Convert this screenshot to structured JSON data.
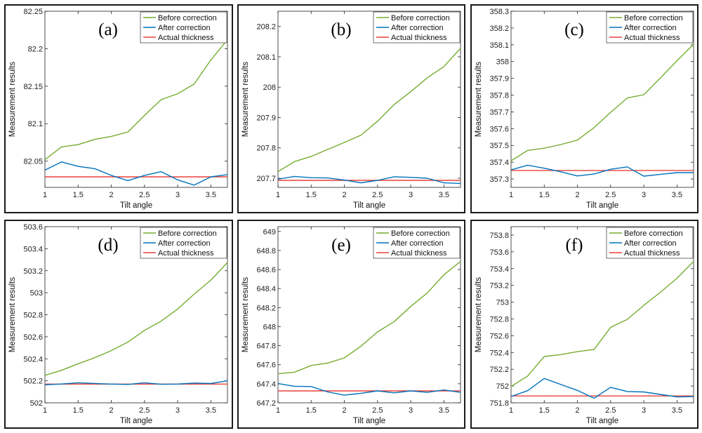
{
  "chart_data": [
    {
      "type": "line",
      "title": "(a)",
      "xlabel": "Tilt angle",
      "ylabel": "Measurement results",
      "x": [
        1,
        1.25,
        1.5,
        1.75,
        2,
        2.25,
        2.5,
        2.75,
        3,
        3.25,
        3.5,
        3.75
      ],
      "xlim": [
        1,
        3.75
      ],
      "ylim": [
        82.015,
        82.25
      ],
      "xticks": [
        "1",
        "1.5",
        "2",
        "2.5",
        "3",
        "3.5"
      ],
      "yticks": [
        "82.05",
        "82.1",
        "82.15",
        "82.2",
        "82.25"
      ],
      "series": [
        {
          "name": "Before correction",
          "color": "#77ac30",
          "values": [
            82.052,
            82.069,
            82.072,
            82.079,
            82.083,
            82.089,
            82.111,
            82.132,
            82.14,
            82.153,
            82.185,
            82.212
          ]
        },
        {
          "name": "After correction",
          "color": "#0072bd",
          "values": [
            82.038,
            82.049,
            82.043,
            82.04,
            82.031,
            82.024,
            82.031,
            82.036,
            82.025,
            82.018,
            82.029,
            82.032
          ]
        },
        {
          "name": "Actual thickness",
          "color": "#e8413c",
          "values": [
            82.029,
            82.029,
            82.029,
            82.029,
            82.029,
            82.029,
            82.029,
            82.029,
            82.029,
            82.029,
            82.029,
            82.029
          ]
        }
      ],
      "legend": "top-right"
    },
    {
      "type": "line",
      "title": "(b)",
      "xlabel": "Tilt angle",
      "ylabel": "Measurement results",
      "x": [
        1,
        1.25,
        1.5,
        1.75,
        2,
        2.25,
        2.5,
        2.75,
        3,
        3.25,
        3.5,
        3.75
      ],
      "xlim": [
        1,
        3.75
      ],
      "ylim": [
        207.67,
        208.25
      ],
      "xticks": [
        "1",
        "1.5",
        "2",
        "2.5",
        "3",
        "3.5"
      ],
      "yticks": [
        "207.7",
        "207.8",
        "207.9",
        "208",
        "208.1",
        "208.2"
      ],
      "series": [
        {
          "name": "Before correction",
          "color": "#77ac30",
          "values": [
            207.722,
            207.755,
            207.772,
            207.795,
            207.818,
            207.842,
            207.888,
            207.943,
            207.985,
            208.031,
            208.068,
            208.128
          ]
        },
        {
          "name": "After correction",
          "color": "#0072bd",
          "values": [
            207.697,
            207.706,
            207.702,
            207.701,
            207.694,
            207.685,
            207.693,
            207.705,
            207.703,
            207.7,
            207.685,
            207.683
          ]
        },
        {
          "name": "Actual thickness",
          "color": "#e8413c",
          "values": [
            207.693,
            207.693,
            207.693,
            207.693,
            207.693,
            207.693,
            207.693,
            207.693,
            207.693,
            207.693,
            207.693,
            207.693
          ]
        }
      ],
      "legend": "top-right"
    },
    {
      "type": "line",
      "title": "(c)",
      "xlabel": "Tilt angle",
      "ylabel": "Measurement results",
      "x": [
        1,
        1.25,
        1.5,
        1.75,
        2,
        2.25,
        2.5,
        2.75,
        3,
        3.25,
        3.5,
        3.75
      ],
      "xlim": [
        1,
        3.75
      ],
      "ylim": [
        357.25,
        358.3
      ],
      "xticks": [
        "1",
        "1.5",
        "2",
        "2.5",
        "3",
        "3.5"
      ],
      "yticks": [
        "357.3",
        "357.4",
        "357.5",
        "357.6",
        "357.7",
        "357.8",
        "357.9",
        "358",
        "358.1",
        "358.2",
        "358.3"
      ],
      "series": [
        {
          "name": "Before correction",
          "color": "#77ac30",
          "values": [
            357.408,
            357.47,
            357.484,
            357.505,
            357.532,
            357.606,
            357.697,
            357.783,
            357.802,
            357.902,
            358.005,
            358.103
          ]
        },
        {
          "name": "After correction",
          "color": "#0072bd",
          "values": [
            357.354,
            357.382,
            357.364,
            357.343,
            357.318,
            357.33,
            357.358,
            357.372,
            357.317,
            357.328,
            357.338,
            357.338
          ]
        },
        {
          "name": "Actual thickness",
          "color": "#e8413c",
          "values": [
            357.351,
            357.351,
            357.351,
            357.351,
            357.351,
            357.351,
            357.351,
            357.351,
            357.351,
            357.351,
            357.351,
            357.351
          ]
        }
      ],
      "legend": "top-right"
    },
    {
      "type": "line",
      "title": "(d)",
      "xlabel": "Tilt angle",
      "ylabel": "Measurement results",
      "x": [
        1,
        1.25,
        1.5,
        1.75,
        2,
        2.25,
        2.5,
        2.75,
        3,
        3.25,
        3.5,
        3.75
      ],
      "xlim": [
        1,
        3.75
      ],
      "ylim": [
        502,
        503.6
      ],
      "xticks": [
        "1",
        "1.5",
        "2",
        "2.5",
        "3",
        "3.5"
      ],
      "yticks": [
        "502",
        "502.2",
        "502.4",
        "502.6",
        "502.8",
        "503",
        "503.2",
        "503.4",
        "503.6"
      ],
      "series": [
        {
          "name": "Before correction",
          "color": "#77ac30",
          "values": [
            502.25,
            502.295,
            502.355,
            502.41,
            502.474,
            502.552,
            502.658,
            502.742,
            502.852,
            502.988,
            503.115,
            503.275
          ]
        },
        {
          "name": "After correction",
          "color": "#0072bd",
          "values": [
            502.164,
            502.171,
            502.182,
            502.176,
            502.17,
            502.167,
            502.182,
            502.168,
            502.17,
            502.18,
            502.175,
            502.2
          ]
        },
        {
          "name": "Actual thickness",
          "color": "#e8413c",
          "values": [
            502.17,
            502.17,
            502.17,
            502.17,
            502.17,
            502.17,
            502.17,
            502.17,
            502.17,
            502.17,
            502.17,
            502.17
          ]
        }
      ],
      "legend": "top-right"
    },
    {
      "type": "line",
      "title": "(e)",
      "xlabel": "Tilt angle",
      "ylabel": "Measurement results",
      "x": [
        1,
        1.25,
        1.5,
        1.75,
        2,
        2.25,
        2.5,
        2.75,
        3,
        3.25,
        3.5,
        3.75
      ],
      "xlim": [
        1,
        3.75
      ],
      "ylim": [
        647.2,
        649.05
      ],
      "xticks": [
        "1",
        "1.5",
        "2",
        "2.5",
        "3",
        "3.5"
      ],
      "yticks": [
        "647.2",
        "647.4",
        "647.6",
        "647.8",
        "648",
        "648.2",
        "648.4",
        "648.6",
        "648.8",
        "649"
      ],
      "series": [
        {
          "name": "Before correction",
          "color": "#77ac30",
          "values": [
            647.505,
            647.522,
            647.592,
            647.618,
            647.672,
            647.795,
            647.945,
            648.053,
            648.212,
            648.355,
            648.545,
            648.685
          ]
        },
        {
          "name": "After correction",
          "color": "#0072bd",
          "values": [
            647.402,
            647.374,
            647.371,
            647.314,
            647.28,
            647.3,
            647.325,
            647.305,
            647.325,
            647.31,
            647.335,
            647.31
          ]
        },
        {
          "name": "Actual thickness",
          "color": "#e8413c",
          "values": [
            647.325,
            647.325,
            647.325,
            647.325,
            647.325,
            647.325,
            647.325,
            647.325,
            647.325,
            647.325,
            647.325,
            647.325
          ]
        }
      ],
      "legend": "top-right"
    },
    {
      "type": "line",
      "title": "(f)",
      "xlabel": "Tilt angle",
      "ylabel": "Measurement results",
      "x": [
        1,
        1.25,
        1.5,
        1.75,
        2,
        2.25,
        2.5,
        2.75,
        3,
        3.25,
        3.5,
        3.75
      ],
      "xlim": [
        1,
        3.75
      ],
      "ylim": [
        751.8,
        753.9
      ],
      "xticks": [
        "1",
        "1.5",
        "2",
        "2.5",
        "3",
        "3.5"
      ],
      "yticks": [
        "751.8",
        "752",
        "752.2",
        "752.4",
        "752.6",
        "752.8",
        "753",
        "753.2",
        "753.4",
        "753.6",
        "753.8"
      ],
      "series": [
        {
          "name": "Before correction",
          "color": "#77ac30",
          "values": [
            751.995,
            752.12,
            752.352,
            752.375,
            752.41,
            752.435,
            752.7,
            752.795,
            752.962,
            753.118,
            753.285,
            753.485
          ]
        },
        {
          "name": "After correction",
          "color": "#0072bd",
          "values": [
            751.875,
            751.945,
            752.09,
            752.018,
            751.948,
            751.855,
            751.985,
            751.935,
            751.93,
            751.9,
            751.87,
            751.875
          ]
        },
        {
          "name": "Actual thickness",
          "color": "#e8413c",
          "values": [
            751.882,
            751.882,
            751.882,
            751.882,
            751.882,
            751.882,
            751.882,
            751.882,
            751.882,
            751.882,
            751.882,
            751.882
          ]
        }
      ],
      "legend": "top-right"
    }
  ]
}
